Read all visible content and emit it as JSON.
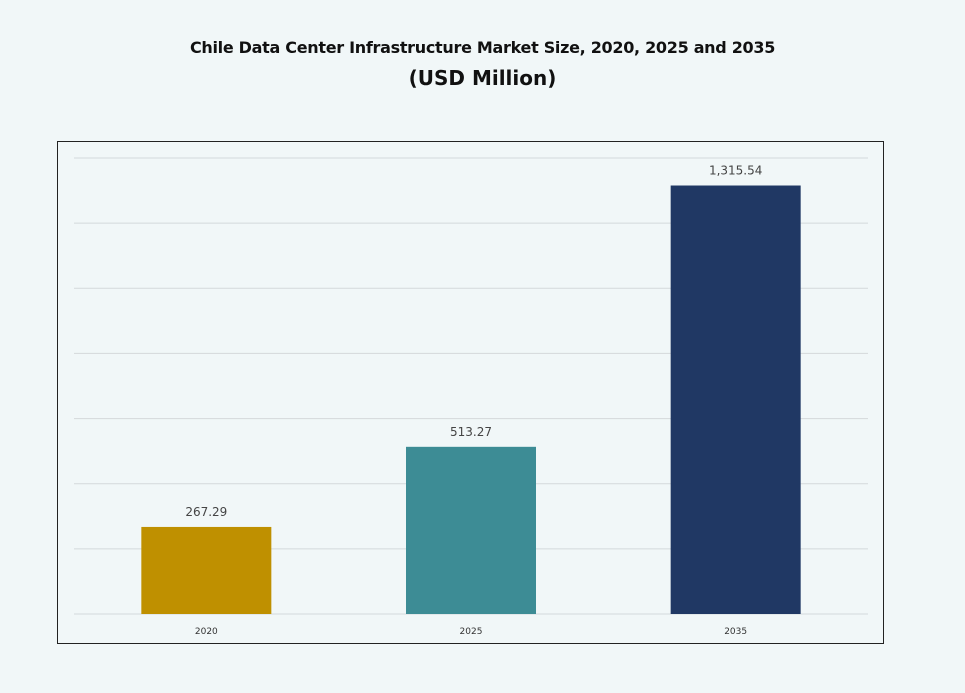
{
  "chart_data": {
    "type": "bar",
    "title": "Chile Data Center Infrastructure Market Size, 2020, 2025 and 2035",
    "subtitle": "(USD Million)",
    "categories": [
      "2020",
      "2025",
      "2035"
    ],
    "values": [
      267.29,
      513.27,
      1315.54
    ],
    "value_labels": [
      "267.29",
      "513.27",
      "1,315.54"
    ],
    "colors": [
      "#bf9000",
      "#3d8c95",
      "#203864"
    ],
    "xlabel": "",
    "ylabel": "",
    "ylim": [
      0,
      1400
    ],
    "ytick_step": 200,
    "y_axis_labels_shown": false,
    "grid": true,
    "legend": "none"
  }
}
